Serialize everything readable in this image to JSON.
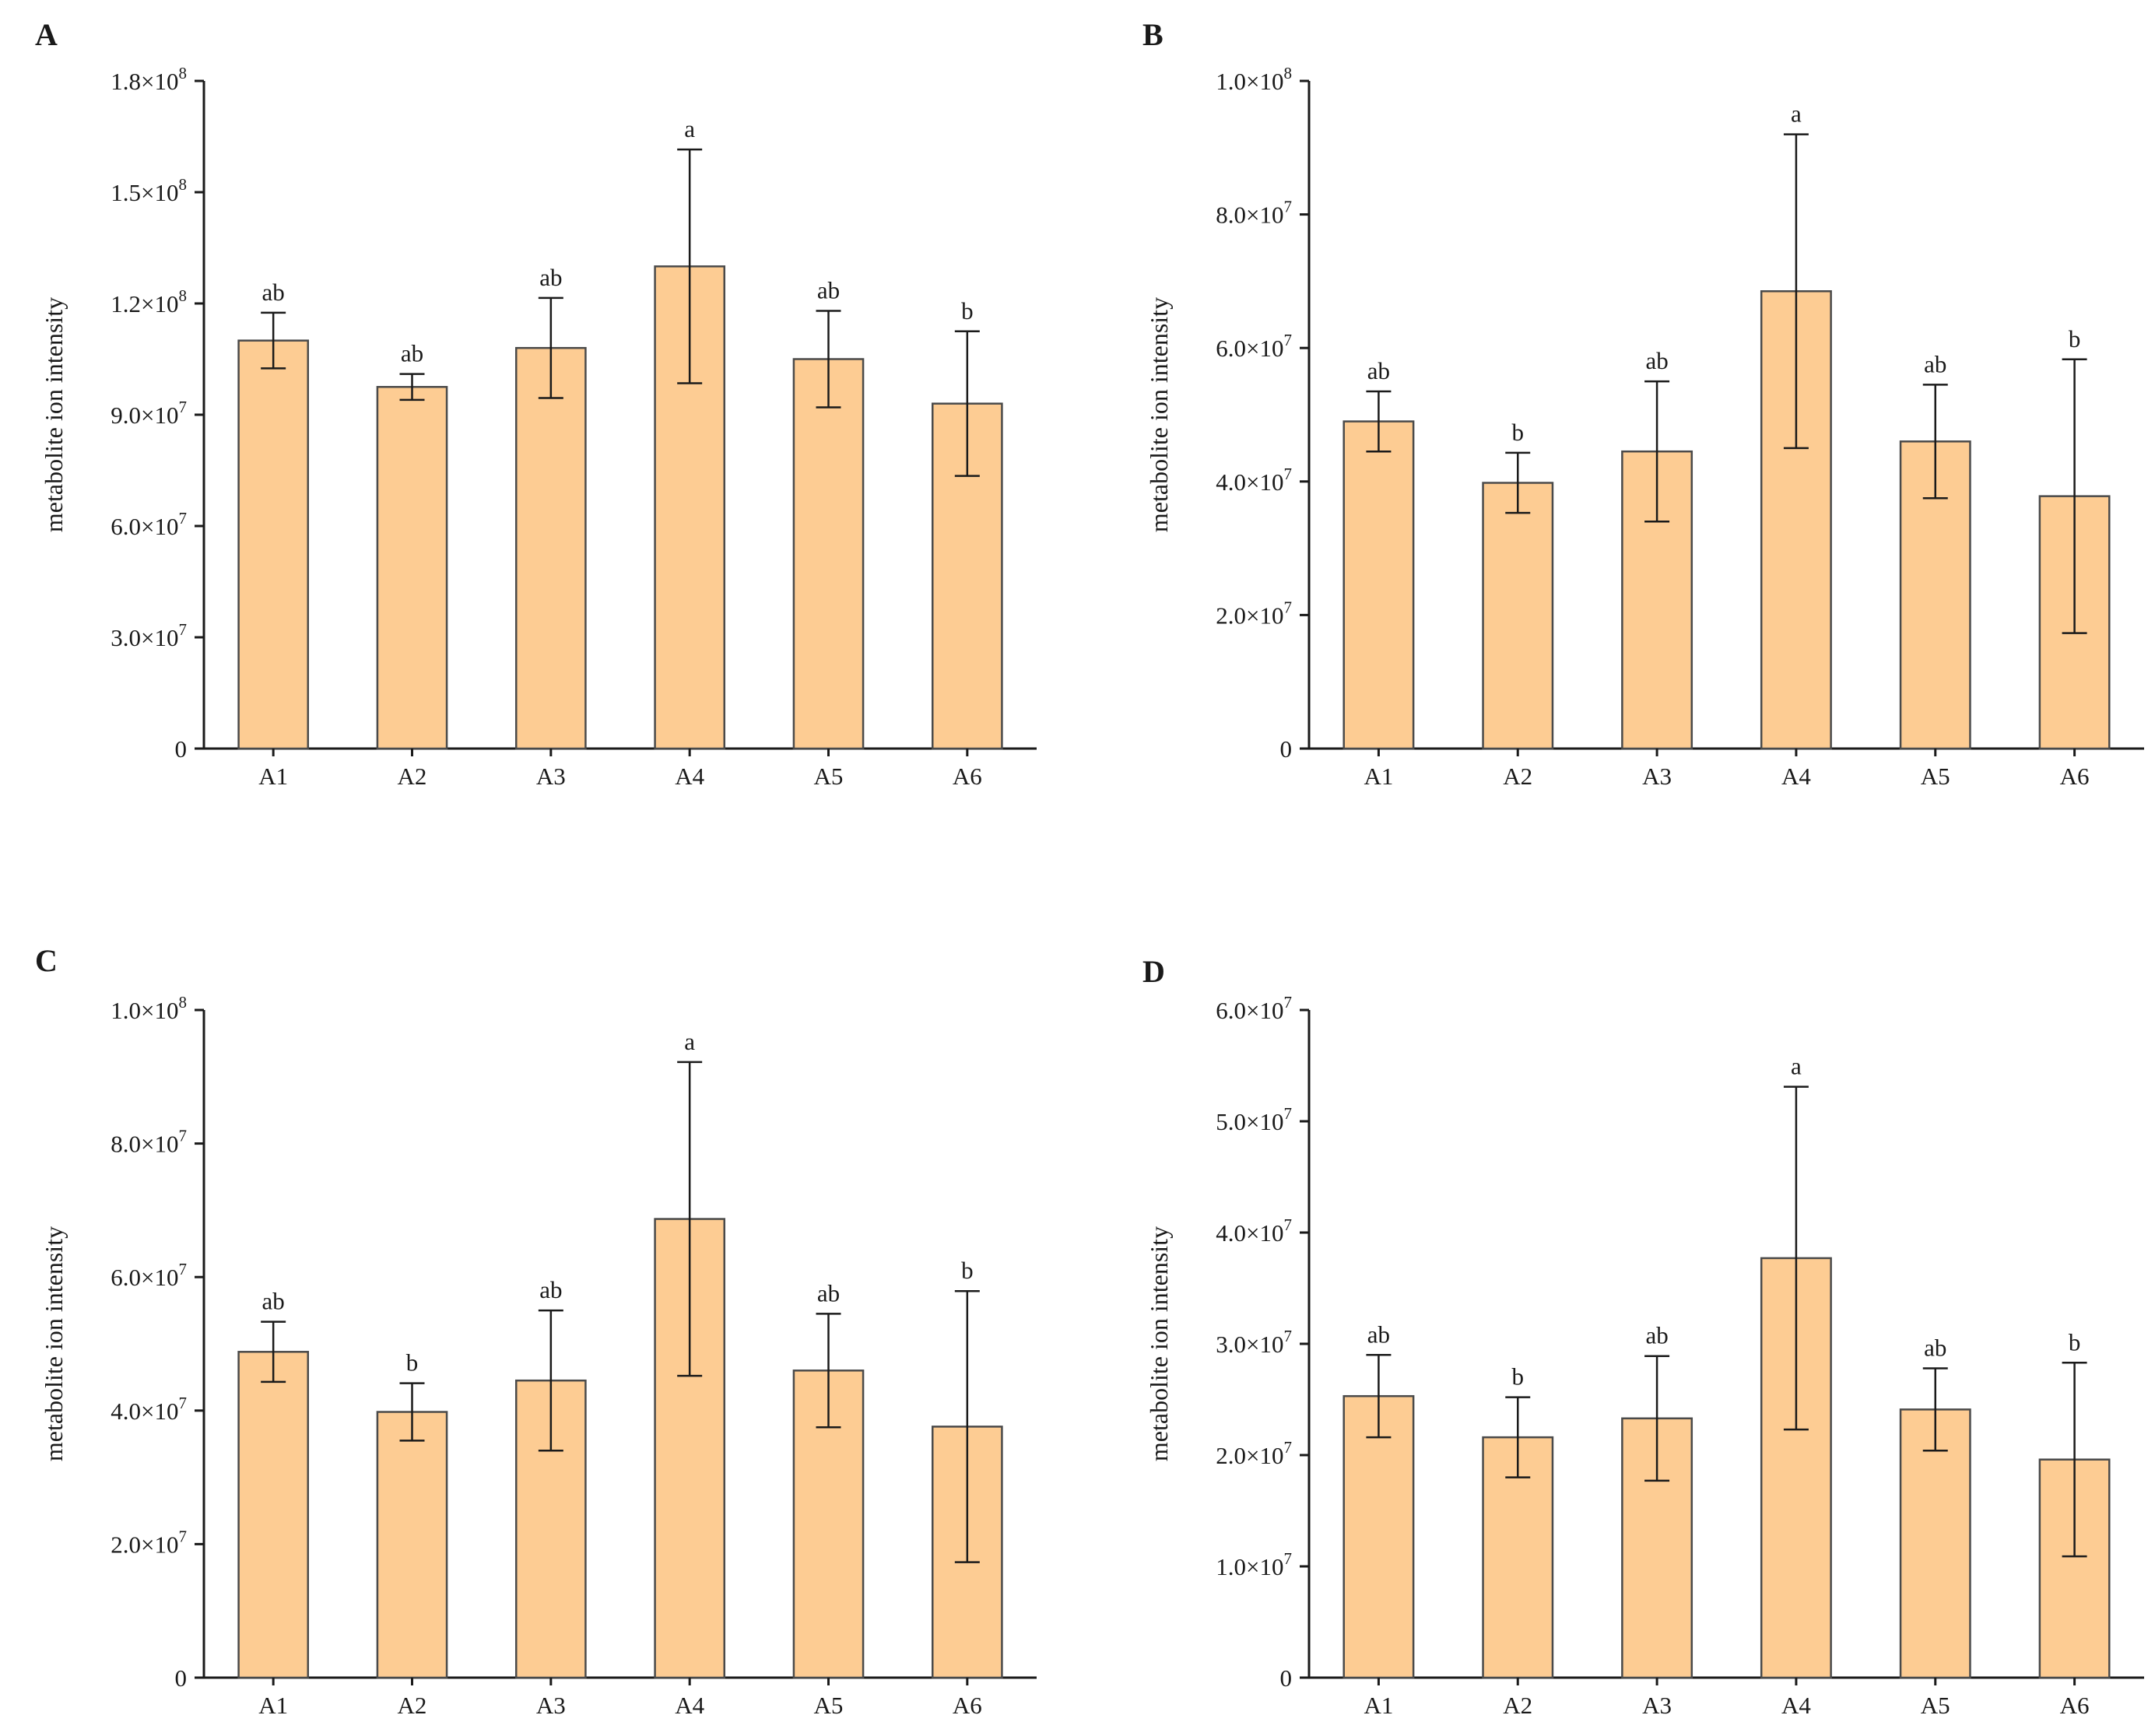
{
  "chart_data": [
    {
      "type": "bar",
      "panel": "A",
      "categories": [
        "A1",
        "A2",
        "A3",
        "A4",
        "A5",
        "A6"
      ],
      "values": [
        110000000,
        97500000,
        108000000,
        130000000,
        105000000,
        93000000
      ],
      "errors": [
        7500000,
        3500000,
        13500000,
        31500000,
        13000000,
        19500000
      ],
      "significance": [
        "ab",
        "ab",
        "ab",
        "a",
        "ab",
        "b"
      ],
      "ylabel": "metabolite ion intensity",
      "ylim": [
        0,
        180000000
      ],
      "yticks": [
        {
          "value": 0,
          "mantissa": "0",
          "exp": ""
        },
        {
          "value": 30000000,
          "mantissa": "3.0×10",
          "exp": "7"
        },
        {
          "value": 60000000,
          "mantissa": "6.0×10",
          "exp": "7"
        },
        {
          "value": 90000000,
          "mantissa": "9.0×10",
          "exp": "7"
        },
        {
          "value": 120000000,
          "mantissa": "1.2×10",
          "exp": "8"
        },
        {
          "value": 150000000,
          "mantissa": "1.5×10",
          "exp": "8"
        },
        {
          "value": 180000000,
          "mantissa": "1.8×10",
          "exp": "8"
        }
      ]
    },
    {
      "type": "bar",
      "panel": "B",
      "categories": [
        "A1",
        "A2",
        "A3",
        "A4",
        "A5",
        "A6"
      ],
      "values": [
        49000000,
        39800000,
        44500000,
        68500000,
        46000000,
        37800000
      ],
      "errors": [
        4500000,
        4500000,
        10500000,
        23500000,
        8500000,
        20500000
      ],
      "significance": [
        "ab",
        "b",
        "ab",
        "a",
        "ab",
        "b"
      ],
      "ylabel": "metabolite ion intensity",
      "ylim": [
        0,
        100000000
      ],
      "yticks": [
        {
          "value": 0,
          "mantissa": "0",
          "exp": ""
        },
        {
          "value": 20000000,
          "mantissa": "2.0×10",
          "exp": "7"
        },
        {
          "value": 40000000,
          "mantissa": "4.0×10",
          "exp": "7"
        },
        {
          "value": 60000000,
          "mantissa": "6.0×10",
          "exp": "7"
        },
        {
          "value": 80000000,
          "mantissa": "8.0×10",
          "exp": "7"
        },
        {
          "value": 100000000,
          "mantissa": "1.0×10",
          "exp": "8"
        }
      ]
    },
    {
      "type": "bar",
      "panel": "C",
      "categories": [
        "A1",
        "A2",
        "A3",
        "A4",
        "A5",
        "A6"
      ],
      "values": [
        48800000,
        39800000,
        44500000,
        68700000,
        46000000,
        37600000
      ],
      "errors": [
        4500000,
        4300000,
        10500000,
        23500000,
        8500000,
        20300000
      ],
      "significance": [
        "ab",
        "b",
        "ab",
        "a",
        "ab",
        "b"
      ],
      "ylabel": "metabolite ion intensity",
      "ylim": [
        0,
        100000000
      ],
      "yticks": [
        {
          "value": 0,
          "mantissa": "0",
          "exp": ""
        },
        {
          "value": 20000000,
          "mantissa": "2.0×10",
          "exp": "7"
        },
        {
          "value": 40000000,
          "mantissa": "4.0×10",
          "exp": "7"
        },
        {
          "value": 60000000,
          "mantissa": "6.0×10",
          "exp": "7"
        },
        {
          "value": 80000000,
          "mantissa": "8.0×10",
          "exp": "7"
        },
        {
          "value": 100000000,
          "mantissa": "1.0×10",
          "exp": "8"
        }
      ]
    },
    {
      "type": "bar",
      "panel": "D",
      "categories": [
        "A1",
        "A2",
        "A3",
        "A4",
        "A5",
        "A6"
      ],
      "values": [
        25300000,
        21600000,
        23300000,
        37700000,
        24100000,
        19600000
      ],
      "errors": [
        3700000,
        3600000,
        5600000,
        15400000,
        3700000,
        8700000
      ],
      "significance": [
        "ab",
        "b",
        "ab",
        "a",
        "ab",
        "b"
      ],
      "ylabel": "metabolite ion intensity",
      "ylim": [
        0,
        60000000
      ],
      "yticks": [
        {
          "value": 0,
          "mantissa": "0",
          "exp": ""
        },
        {
          "value": 10000000,
          "mantissa": "1.0×10",
          "exp": "7"
        },
        {
          "value": 20000000,
          "mantissa": "2.0×10",
          "exp": "7"
        },
        {
          "value": 30000000,
          "mantissa": "3.0×10",
          "exp": "7"
        },
        {
          "value": 40000000,
          "mantissa": "4.0×10",
          "exp": "7"
        },
        {
          "value": 50000000,
          "mantissa": "5.0×10",
          "exp": "7"
        },
        {
          "value": 60000000,
          "mantissa": "6.0×10",
          "exp": "7"
        }
      ]
    }
  ],
  "colors": {
    "bar_fill": "#fdcc93",
    "bar_stroke": "#4a4a4a",
    "axis": "#1a1a1a",
    "error_bar": "#1a1a1a"
  }
}
